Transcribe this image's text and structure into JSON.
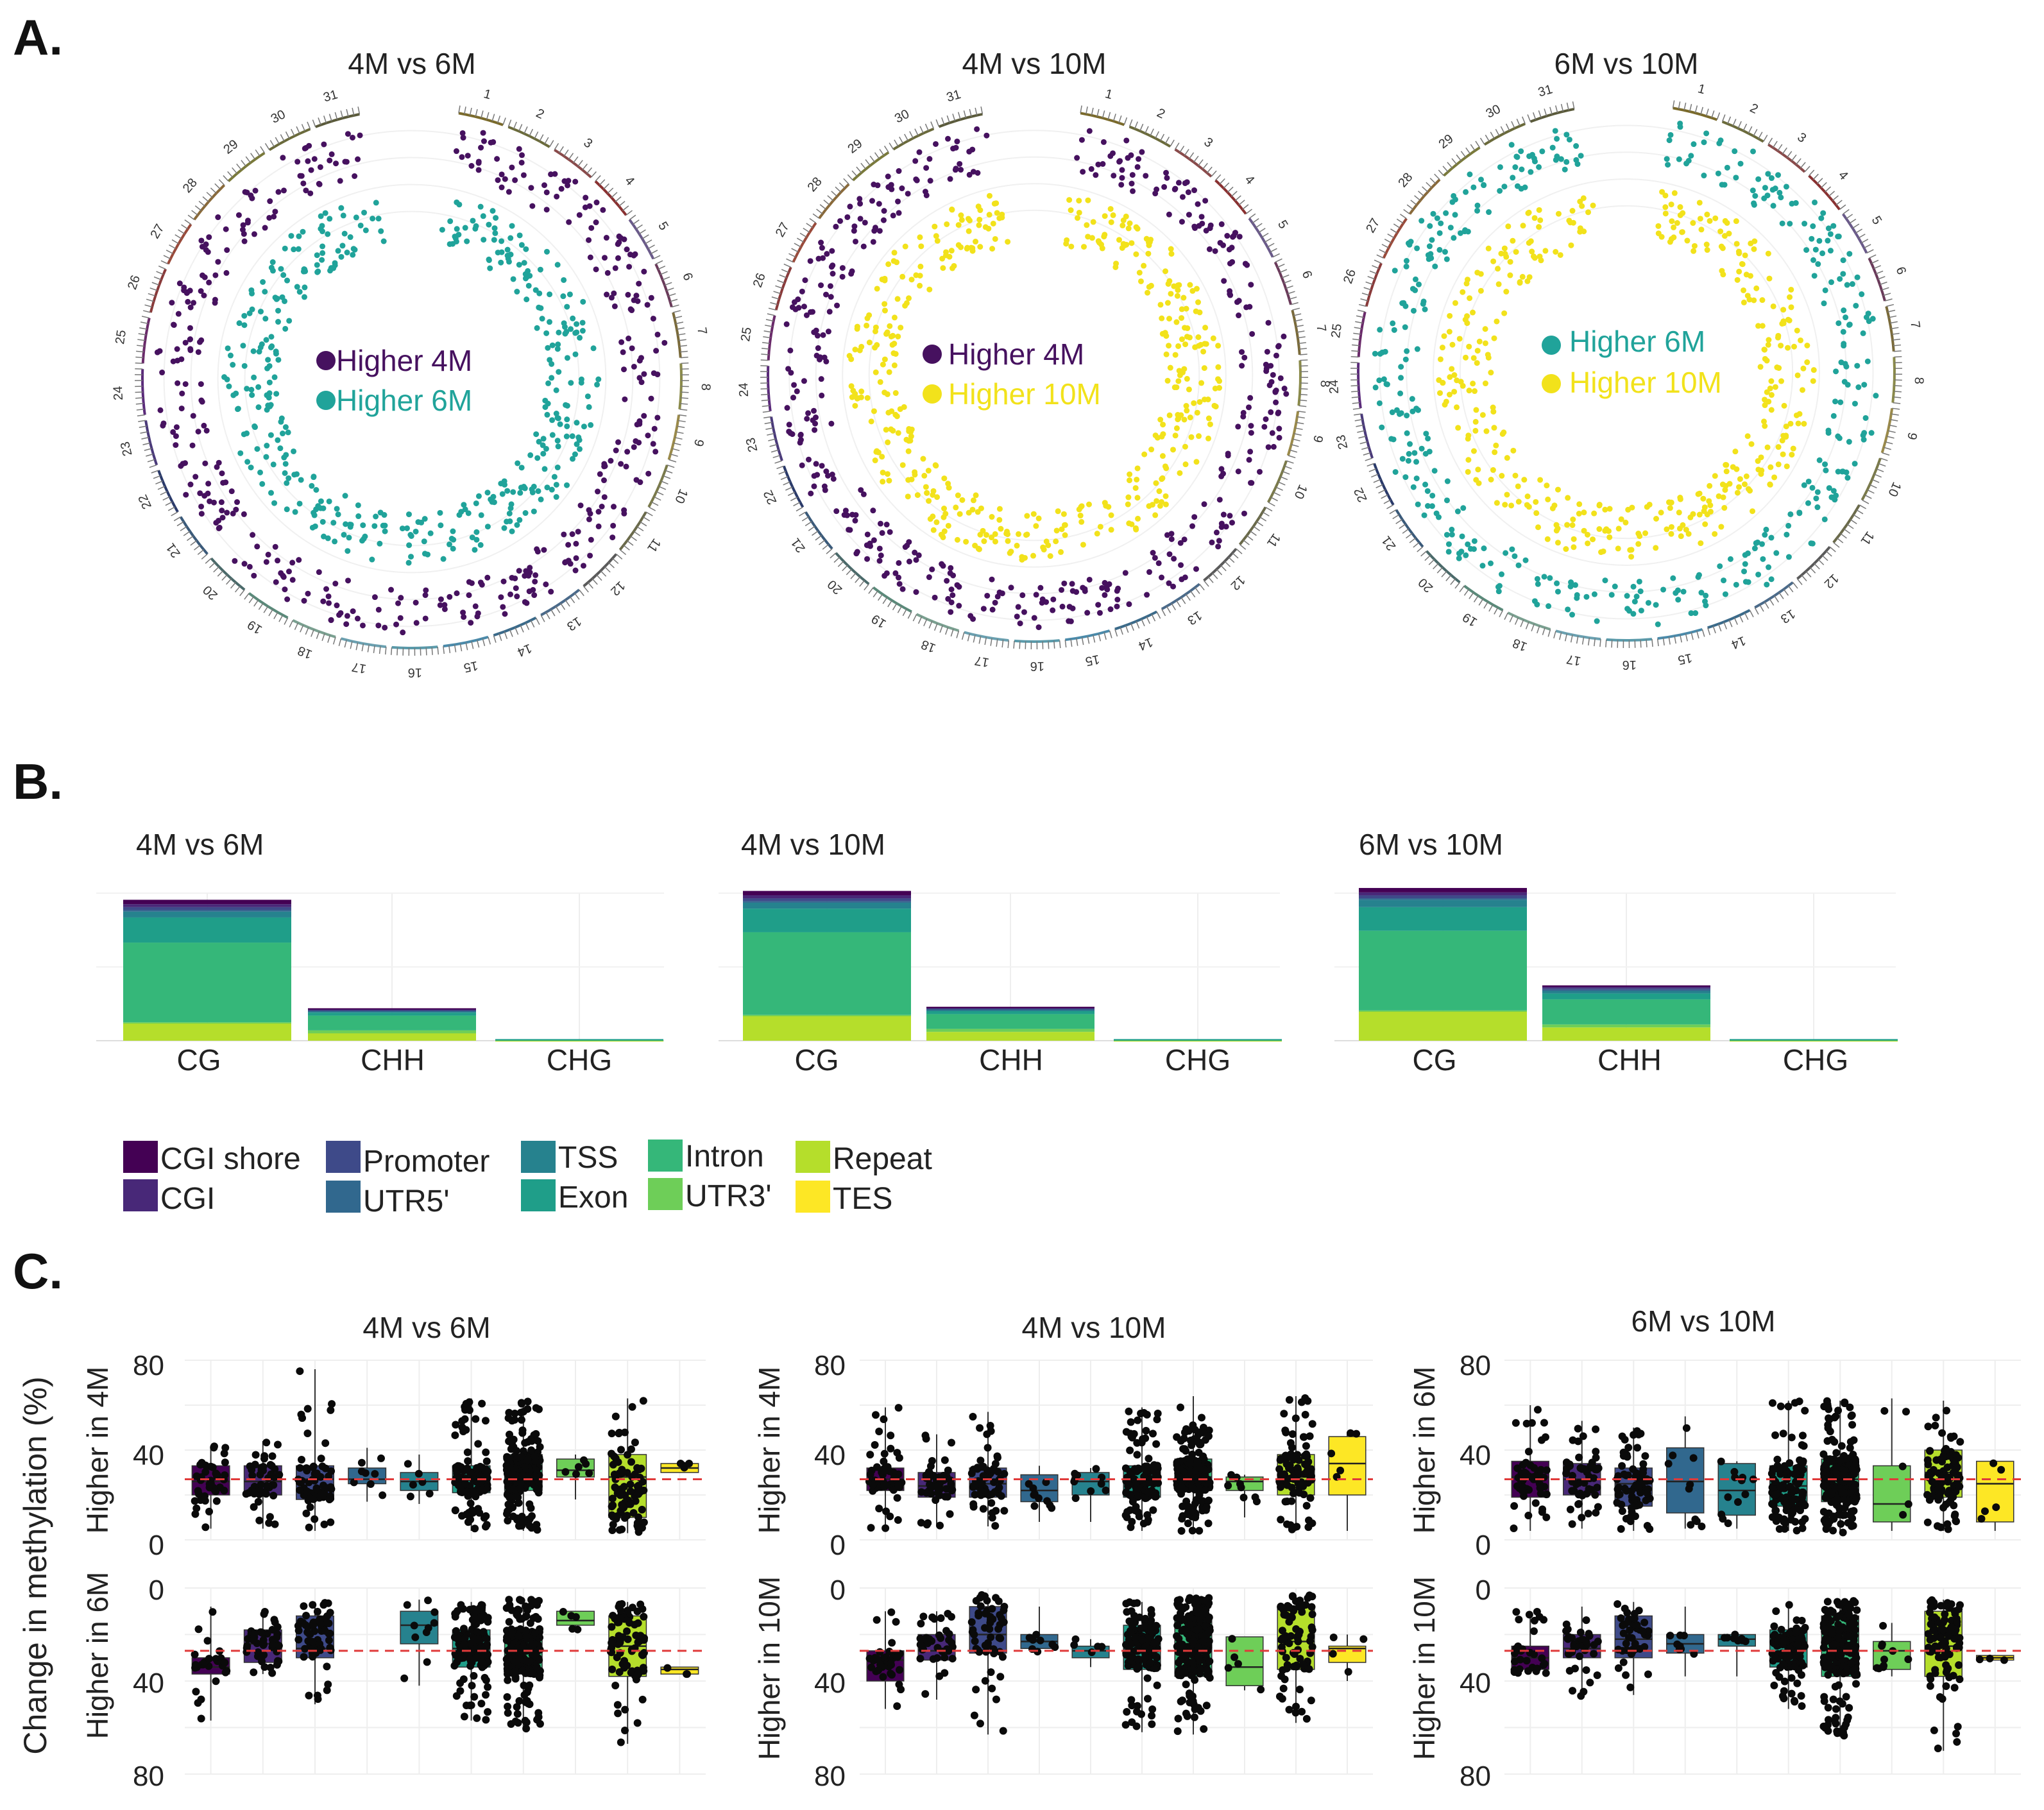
{
  "panel_labels": [
    "A.",
    "B.",
    "C."
  ],
  "colors": {
    "purple": "#46115f",
    "teal": "#20a39a",
    "yellow": "#f2e21b",
    "grid": "#e8e8e8",
    "median_line": "#e03a3a"
  },
  "chart_data": [
    {
      "type": "scatter",
      "subtype": "circos",
      "title": "4M vs 6M",
      "chromosomes": [
        "1",
        "2",
        "3",
        "4",
        "5",
        "6",
        "7",
        "8",
        "9",
        "10",
        "11",
        "12",
        "13",
        "14",
        "15",
        "16",
        "17",
        "18",
        "19",
        "20",
        "21",
        "22",
        "23",
        "24",
        "25",
        "26",
        "27",
        "28",
        "29",
        "30",
        "31"
      ],
      "series": [
        {
          "name": "Higher 4M",
          "color": "#46115f",
          "ring": "outer"
        },
        {
          "name": "Higher 6M",
          "color": "#20a39a",
          "ring": "inner"
        }
      ]
    },
    {
      "type": "scatter",
      "subtype": "circos",
      "title": "4M vs 10M",
      "chromosomes": [
        "1",
        "2",
        "3",
        "4",
        "5",
        "6",
        "7",
        "8",
        "9",
        "10",
        "11",
        "12",
        "13",
        "14",
        "15",
        "16",
        "17",
        "18",
        "19",
        "20",
        "21",
        "22",
        "23",
        "24",
        "25",
        "26",
        "27",
        "28",
        "29",
        "30",
        "31"
      ],
      "series": [
        {
          "name": "Higher 4M",
          "color": "#46115f",
          "ring": "outer"
        },
        {
          "name": "Higher 10M",
          "color": "#f2e21b",
          "ring": "inner"
        }
      ]
    },
    {
      "type": "scatter",
      "subtype": "circos",
      "title": "6M vs 10M",
      "chromosomes": [
        "1",
        "2",
        "3",
        "4",
        "5",
        "6",
        "7",
        "8",
        "9",
        "10",
        "11",
        "12",
        "13",
        "14",
        "15",
        "16",
        "17",
        "18",
        "19",
        "20",
        "21",
        "22",
        "23",
        "24",
        "25",
        "26",
        "27",
        "28",
        "29",
        "30",
        "31"
      ],
      "series": [
        {
          "name": "Higher 6M",
          "color": "#20a39a",
          "ring": "outer"
        },
        {
          "name": "Higher 10M",
          "color": "#f2e21b",
          "ring": "inner"
        }
      ]
    },
    {
      "type": "bar",
      "subtype": "stacked",
      "title": "4M vs 6M",
      "categories": [
        "CG",
        "CHH",
        "CHG"
      ],
      "ylim": [
        0,
        100
      ],
      "series": [
        {
          "name": "Repeat",
          "values": [
            12,
            5,
            0.3
          ]
        },
        {
          "name": "UTR3'",
          "values": [
            0.5,
            2,
            0
          ]
        },
        {
          "name": "Intron",
          "values": [
            54,
            10,
            0.5
          ]
        },
        {
          "name": "Exon",
          "values": [
            17,
            2,
            0.3
          ]
        },
        {
          "name": "TSS",
          "values": [
            4,
            1,
            0
          ]
        },
        {
          "name": "UTR5'",
          "values": [
            1,
            0.5,
            0
          ]
        },
        {
          "name": "Promoter",
          "values": [
            2,
            0.5,
            0
          ]
        },
        {
          "name": "CGI",
          "values": [
            2,
            0.5,
            0
          ]
        },
        {
          "name": "CGI shore",
          "values": [
            3,
            0.5,
            0
          ]
        }
      ]
    },
    {
      "type": "bar",
      "subtype": "stacked",
      "title": "4M vs 10M",
      "categories": [
        "CG",
        "CHH",
        "CHG"
      ],
      "ylim": [
        0,
        100
      ],
      "series": [
        {
          "name": "Repeat",
          "values": [
            17,
            6,
            0.3
          ]
        },
        {
          "name": "UTR3'",
          "values": [
            0.5,
            2,
            0
          ]
        },
        {
          "name": "Intron",
          "values": [
            56,
            10,
            0.5
          ]
        },
        {
          "name": "Exon",
          "values": [
            16,
            2,
            0.3
          ]
        },
        {
          "name": "TSS",
          "values": [
            4,
            1,
            0
          ]
        },
        {
          "name": "UTR5'",
          "values": [
            1,
            0.5,
            0
          ]
        },
        {
          "name": "Promoter",
          "values": [
            2,
            0.5,
            0
          ]
        },
        {
          "name": "CGI",
          "values": [
            2,
            0.5,
            0
          ]
        },
        {
          "name": "CGI shore",
          "values": [
            3,
            0.5,
            0
          ]
        }
      ]
    },
    {
      "type": "bar",
      "subtype": "stacked",
      "title": "6M vs 10M",
      "categories": [
        "CG",
        "CHH",
        "CHG"
      ],
      "ylim": [
        0,
        100
      ],
      "series": [
        {
          "name": "Repeat",
          "values": [
            20,
            9,
            0.3
          ]
        },
        {
          "name": "UTR3'",
          "values": [
            0.5,
            2,
            0
          ]
        },
        {
          "name": "Intron",
          "values": [
            54,
            17,
            0.5
          ]
        },
        {
          "name": "Exon",
          "values": [
            16,
            4,
            0.3
          ]
        },
        {
          "name": "TSS",
          "values": [
            5,
            2,
            0
          ]
        },
        {
          "name": "UTR5'",
          "values": [
            1,
            0.5,
            0
          ]
        },
        {
          "name": "Promoter",
          "values": [
            2,
            1,
            0
          ]
        },
        {
          "name": "CGI",
          "values": [
            2,
            1,
            0
          ]
        },
        {
          "name": "CGI shore",
          "values": [
            3,
            1,
            0
          ]
        }
      ]
    },
    {
      "type": "boxplot",
      "title": "4M vs 6M",
      "ylabel_main": "Change in methylation (%)",
      "top_label": "Higher in 4M",
      "bottom_label": "Higher in 6M",
      "top_ylim": [
        0,
        80
      ],
      "bottom_ylim": [
        0,
        80
      ],
      "top_ticks": [
        "80",
        "40",
        "0"
      ],
      "bottom_ticks": [
        "0",
        "40",
        "80"
      ],
      "top_median_ref": 27,
      "bottom_median_ref": 27,
      "categories": [
        "CGI shore",
        "CGI",
        "Promoter",
        "UTR5'",
        "TSS",
        "Exon",
        "Intron",
        "UTR3'",
        "Repeat",
        "TES"
      ],
      "top": [
        {
          "q1": 20,
          "med": 26,
          "q3": 33,
          "lo": 5,
          "hi": 42,
          "n": 40
        },
        {
          "q1": 20,
          "med": 26,
          "q3": 33,
          "lo": 5,
          "hi": 44,
          "n": 45
        },
        {
          "q1": 18,
          "med": 27,
          "q3": 33,
          "lo": 4,
          "hi": 76,
          "n": 70
        },
        {
          "q1": 25,
          "med": 27,
          "q3": 32,
          "lo": 17,
          "hi": 41,
          "n": 8
        },
        {
          "q1": 22,
          "med": 26,
          "q3": 30,
          "lo": 16,
          "hi": 38,
          "n": 6
        },
        {
          "q1": 21,
          "med": 27,
          "q3": 33,
          "lo": 4,
          "hi": 63,
          "n": 120
        },
        {
          "q1": 22,
          "med": 28,
          "q3": 38,
          "lo": 4,
          "hi": 62,
          "n": 220
        },
        {
          "q1": 28,
          "med": 31,
          "q3": 36,
          "lo": 18,
          "hi": 38,
          "n": 6
        },
        {
          "q1": 10,
          "med": 28,
          "q3": 38,
          "lo": 3,
          "hi": 63,
          "n": 90
        },
        {
          "q1": 30,
          "med": 32,
          "q3": 34,
          "lo": 30,
          "hi": 34,
          "n": 4
        }
      ],
      "bottom": [
        {
          "q1": 30,
          "med": 34,
          "q3": 37,
          "lo": 8,
          "hi": 57,
          "n": 25
        },
        {
          "q1": 18,
          "med": 24,
          "q3": 32,
          "lo": 10,
          "hi": 37,
          "n": 45
        },
        {
          "q1": 12,
          "med": 26,
          "q3": 30,
          "lo": 6,
          "hi": 50,
          "n": 60
        },
        null,
        {
          "q1": 10,
          "med": 16,
          "q3": 24,
          "lo": 5,
          "hi": 42,
          "n": 10
        },
        {
          "q1": 18,
          "med": 26,
          "q3": 34,
          "lo": 6,
          "hi": 57,
          "n": 130
        },
        {
          "q1": 18,
          "med": 27,
          "q3": 37,
          "lo": 5,
          "hi": 61,
          "n": 200
        },
        {
          "q1": 10,
          "med": 14,
          "q3": 16,
          "lo": 10,
          "hi": 18,
          "n": 5
        },
        {
          "q1": 12,
          "med": 25,
          "q3": 38,
          "lo": 6,
          "hi": 67,
          "n": 80
        },
        {
          "q1": 34,
          "med": 35,
          "q3": 37,
          "lo": 34,
          "hi": 37,
          "n": 3
        }
      ]
    },
    {
      "type": "boxplot",
      "title": "4M vs 10M",
      "top_label": "Higher in 4M",
      "bottom_label": "Higher in 10M",
      "top_ylim": [
        0,
        80
      ],
      "bottom_ylim": [
        0,
        80
      ],
      "top_ticks": [
        "80",
        "40",
        "0"
      ],
      "bottom_ticks": [
        "0",
        "40",
        "80"
      ],
      "top_median_ref": 27,
      "bottom_median_ref": 27,
      "categories": [
        "CGI shore",
        "CGI",
        "Promoter",
        "UTR5'",
        "TSS",
        "Exon",
        "Intron",
        "UTR3'",
        "Repeat",
        "TES"
      ],
      "top": [
        {
          "q1": 22,
          "med": 27,
          "q3": 32,
          "lo": 5,
          "hi": 59,
          "n": 60
        },
        {
          "q1": 19,
          "med": 24,
          "q3": 30,
          "lo": 6,
          "hi": 47,
          "n": 45
        },
        {
          "q1": 19,
          "med": 25,
          "q3": 32,
          "lo": 6,
          "hi": 57,
          "n": 60
        },
        {
          "q1": 17,
          "med": 22,
          "q3": 29,
          "lo": 8,
          "hi": 33,
          "n": 10
        },
        {
          "q1": 20,
          "med": 26,
          "q3": 30,
          "lo": 8,
          "hi": 32,
          "n": 10
        },
        {
          "q1": 19,
          "med": 26,
          "q3": 33,
          "lo": 4,
          "hi": 59,
          "n": 130
        },
        {
          "q1": 22,
          "med": 28,
          "q3": 36,
          "lo": 4,
          "hi": 64,
          "n": 230
        },
        {
          "q1": 22,
          "med": 26,
          "q3": 28,
          "lo": 10,
          "hi": 29,
          "n": 8
        },
        {
          "q1": 20,
          "med": 28,
          "q3": 38,
          "lo": 4,
          "hi": 64,
          "n": 90
        },
        {
          "q1": 20,
          "med": 34,
          "q3": 46,
          "lo": 4,
          "hi": 48,
          "n": 5
        }
      ],
      "bottom": [
        {
          "q1": 27,
          "med": 31,
          "q3": 40,
          "lo": 10,
          "hi": 52,
          "n": 35
        },
        {
          "q1": 20,
          "med": 27,
          "q3": 31,
          "lo": 10,
          "hi": 48,
          "n": 35
        },
        {
          "q1": 8,
          "med": 20,
          "q3": 28,
          "lo": 3,
          "hi": 63,
          "n": 55
        },
        {
          "q1": 20,
          "med": 23,
          "q3": 26,
          "lo": 8,
          "hi": 28,
          "n": 8
        },
        {
          "q1": 25,
          "med": 27,
          "q3": 30,
          "lo": 22,
          "hi": 34,
          "n": 5
        },
        {
          "q1": 16,
          "med": 26,
          "q3": 35,
          "lo": 6,
          "hi": 62,
          "n": 140
        },
        {
          "q1": 13,
          "med": 26,
          "q3": 38,
          "lo": 4,
          "hi": 63,
          "n": 230
        },
        {
          "q1": 21,
          "med": 34,
          "q3": 42,
          "lo": 21,
          "hi": 44,
          "n": 5
        },
        {
          "q1": 8,
          "med": 23,
          "q3": 35,
          "lo": 3,
          "hi": 58,
          "n": 80
        },
        {
          "q1": 25,
          "med": 26,
          "q3": 32,
          "lo": 20,
          "hi": 40,
          "n": 4
        }
      ]
    },
    {
      "type": "boxplot",
      "title": "6M vs 10M",
      "top_label": "Higher in 6M",
      "bottom_label": "Higher in 10M",
      "top_ylim": [
        0,
        80
      ],
      "bottom_ylim": [
        0,
        80
      ],
      "top_ticks": [
        "80",
        "40",
        "0"
      ],
      "bottom_ticks": [
        "0",
        "40",
        "80"
      ],
      "top_median_ref": 27,
      "bottom_median_ref": 27,
      "categories": [
        "CGI shore",
        "CGI",
        "Promoter",
        "UTR5'",
        "TSS",
        "Exon",
        "Intron",
        "UTR3'",
        "Repeat",
        "TES"
      ],
      "top": [
        {
          "q1": 19,
          "med": 28,
          "q3": 35,
          "lo": 4,
          "hi": 60,
          "n": 55
        },
        {
          "q1": 20,
          "med": 27,
          "q3": 34,
          "lo": 5,
          "hi": 53,
          "n": 55
        },
        {
          "q1": 15,
          "med": 25,
          "q3": 32,
          "lo": 4,
          "hi": 50,
          "n": 70
        },
        {
          "q1": 12,
          "med": 26,
          "q3": 41,
          "lo": 5,
          "hi": 55,
          "n": 10
        },
        {
          "q1": 11,
          "med": 22,
          "q3": 34,
          "lo": 5,
          "hi": 35,
          "n": 12
        },
        {
          "q1": 15,
          "med": 24,
          "q3": 33,
          "lo": 4,
          "hi": 62,
          "n": 120
        },
        {
          "q1": 17,
          "med": 27,
          "q3": 36,
          "lo": 3,
          "hi": 62,
          "n": 220
        },
        {
          "q1": 8,
          "med": 16,
          "q3": 33,
          "lo": 4,
          "hi": 63,
          "n": 5
        },
        {
          "q1": 19,
          "med": 30,
          "q3": 40,
          "lo": 4,
          "hi": 62,
          "n": 100
        },
        {
          "q1": 8,
          "med": 25,
          "q3": 35,
          "lo": 4,
          "hi": 35,
          "n": 5
        }
      ],
      "bottom": [
        {
          "q1": 25,
          "med": 30,
          "q3": 35,
          "lo": 10,
          "hi": 37,
          "n": 30
        },
        {
          "q1": 20,
          "med": 26,
          "q3": 30,
          "lo": 8,
          "hi": 48,
          "n": 40
        },
        {
          "q1": 12,
          "med": 22,
          "q3": 30,
          "lo": 6,
          "hi": 46,
          "n": 45
        },
        {
          "q1": 20,
          "med": 24,
          "q3": 28,
          "lo": 8,
          "hi": 38,
          "n": 8
        },
        {
          "q1": 20,
          "med": 22,
          "q3": 25,
          "lo": 20,
          "hi": 38,
          "n": 8
        },
        {
          "q1": 18,
          "med": 24,
          "q3": 34,
          "lo": 6,
          "hi": 52,
          "n": 110
        },
        {
          "q1": 12,
          "med": 26,
          "q3": 38,
          "lo": 5,
          "hi": 64,
          "n": 200
        },
        {
          "q1": 23,
          "med": 27,
          "q3": 35,
          "lo": 15,
          "hi": 38,
          "n": 10
        },
        {
          "q1": 10,
          "med": 25,
          "q3": 38,
          "lo": 5,
          "hi": 70,
          "n": 90
        },
        {
          "q1": 29,
          "med": 30,
          "q3": 31,
          "lo": 29,
          "hi": 31,
          "n": 3
        }
      ]
    }
  ],
  "legend": {
    "items": [
      {
        "name": "CGI shore",
        "color": "#440154"
      },
      {
        "name": "CGI",
        "color": "#482878"
      },
      {
        "name": "Promoter",
        "color": "#3e4a89"
      },
      {
        "name": "UTR5'",
        "color": "#31688e"
      },
      {
        "name": "TSS",
        "color": "#26828e"
      },
      {
        "name": "Exon",
        "color": "#1f9e89"
      },
      {
        "name": "Intron",
        "color": "#35b779"
      },
      {
        "name": "UTR3'",
        "color": "#6ece58"
      },
      {
        "name": "Repeat",
        "color": "#b5de2b"
      },
      {
        "name": "TES",
        "color": "#fde725"
      }
    ]
  }
}
